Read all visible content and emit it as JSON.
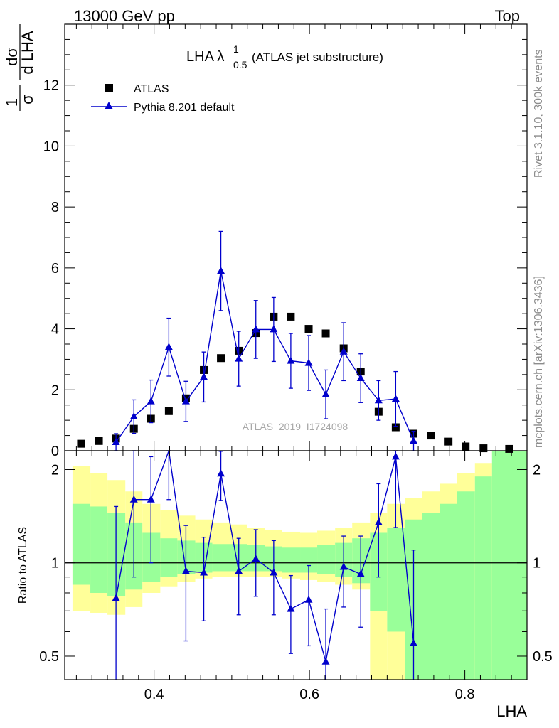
{
  "header": {
    "left_label": "13000 GeV pp",
    "right_label": "Top"
  },
  "side_labels": {
    "top": "Rivet 3.1.10,  300k events",
    "bottom": "mcplots.cern.ch [arXiv:1306.3436]"
  },
  "chart_data": {
    "type": "scatter",
    "title_main": "LHA λ",
    "title_sup": "1",
    "title_sub": "0.5",
    "title_suffix": "(ATLAS jet substructure)",
    "ylabel_fraction": "1/σ",
    "ylabel_derivative": "dσ/d LHA",
    "ylabel_num_main": "1",
    "ylabel_den_main": "σ",
    "ylabel_num_deriv": "dσ",
    "ylabel_den_deriv": "d LHA",
    "xlabel": "LHA",
    "watermark": "ATLAS_2019_I1724098",
    "xlim": [
      0.285,
      0.88
    ],
    "main_ylim": [
      0,
      14
    ],
    "main_yticks": [
      "0",
      "2",
      "4",
      "6",
      "8",
      "10",
      "12"
    ],
    "main_yticks_values": [
      0,
      2,
      4,
      6,
      8,
      10,
      12
    ],
    "ratio_ylabel": "Ratio to ATLAS",
    "ratio_ylim": [
      0.42,
      2.3
    ],
    "ratio_yticks": [
      "0.5",
      "1",
      "2"
    ],
    "ratio_yticks_values": [
      0.5,
      1,
      2
    ],
    "xticks": [
      "0.4",
      "0.6",
      "0.8"
    ],
    "xticks_values": [
      0.4,
      0.6,
      0.8
    ],
    "colors": {
      "data": "#000000",
      "mc": "#0000cc",
      "band_inner": "#99ff99",
      "band_outer": "#ffff99"
    },
    "series": [
      {
        "name": "ATLAS",
        "marker": "square",
        "x": [
          0.306,
          0.329,
          0.351,
          0.374,
          0.396,
          0.419,
          0.441,
          0.464,
          0.486,
          0.509,
          0.531,
          0.554,
          0.576,
          0.599,
          0.621,
          0.644,
          0.666,
          0.689,
          0.711,
          0.734,
          0.756,
          0.779,
          0.801,
          0.824,
          0.857
        ],
        "values": [
          0.23,
          0.32,
          0.4,
          0.72,
          1.05,
          1.3,
          1.72,
          2.65,
          3.04,
          3.28,
          3.86,
          4.4,
          4.4,
          4.0,
          3.85,
          3.36,
          2.6,
          1.28,
          0.77,
          0.56,
          0.5,
          0.3,
          0.14,
          0.08,
          0.06
        ]
      },
      {
        "name": "Pythia 8.201 default",
        "marker": "triangle",
        "x": [
          0.351,
          0.374,
          0.396,
          0.419,
          0.441,
          0.464,
          0.486,
          0.509,
          0.531,
          0.554,
          0.576,
          0.599,
          0.621,
          0.644,
          0.666,
          0.689,
          0.711,
          0.734
        ],
        "values": [
          0.28,
          1.12,
          1.62,
          3.4,
          1.62,
          2.42,
          5.9,
          3.02,
          3.98,
          3.98,
          2.95,
          2.88,
          1.85,
          3.25,
          2.38,
          1.65,
          1.7,
          0.32
        ],
        "errors": [
          0.28,
          0.55,
          0.7,
          0.95,
          0.66,
          0.82,
          1.3,
          0.9,
          0.95,
          1.05,
          0.9,
          0.9,
          0.8,
          0.95,
          0.8,
          0.65,
          0.9,
          0.32
        ]
      }
    ],
    "ratio": {
      "values": [
        0.77,
        1.6,
        1.6,
        2.5,
        0.94,
        0.93,
        1.94,
        0.94,
        1.03,
        0.93,
        0.71,
        0.76,
        0.48,
        0.97,
        0.92,
        1.35,
        2.2,
        0.55
      ],
      "errors": [
        0.75,
        0.7,
        0.6,
        0.9,
        0.38,
        0.28,
        0.35,
        0.26,
        0.25,
        0.25,
        0.2,
        0.22,
        0.23,
        0.25,
        0.3,
        0.45,
        0.9,
        0.55
      ]
    },
    "bands": {
      "edges": [
        0.295,
        0.318,
        0.34,
        0.363,
        0.385,
        0.408,
        0.43,
        0.453,
        0.475,
        0.498,
        0.52,
        0.543,
        0.565,
        0.588,
        0.61,
        0.633,
        0.655,
        0.678,
        0.7,
        0.723,
        0.745,
        0.768,
        0.79,
        0.813,
        0.835,
        0.88
      ],
      "outer_low": [
        0.7,
        0.69,
        0.68,
        0.72,
        0.8,
        0.84,
        0.87,
        0.89,
        0.9,
        0.9,
        0.9,
        0.9,
        0.89,
        0.88,
        0.87,
        0.85,
        0.82,
        0.4,
        0.4,
        0.4,
        0.4,
        0.4,
        0.4,
        0.4,
        0.4
      ],
      "outer_high": [
        2.05,
        1.95,
        1.85,
        1.7,
        1.55,
        1.48,
        1.42,
        1.38,
        1.35,
        1.33,
        1.3,
        1.28,
        1.26,
        1.25,
        1.27,
        1.3,
        1.35,
        1.45,
        1.55,
        1.62,
        1.7,
        1.8,
        1.95,
        2.1,
        2.3
      ],
      "inner_low": [
        0.85,
        0.8,
        0.78,
        0.82,
        0.87,
        0.9,
        0.92,
        0.93,
        0.94,
        0.94,
        0.94,
        0.94,
        0.93,
        0.93,
        0.92,
        0.9,
        0.86,
        0.7,
        0.6,
        0.4,
        0.4,
        0.4,
        0.4,
        0.4,
        0.4
      ],
      "inner_high": [
        1.55,
        1.52,
        1.45,
        1.35,
        1.25,
        1.2,
        1.18,
        1.16,
        1.15,
        1.15,
        1.14,
        1.13,
        1.12,
        1.12,
        1.14,
        1.16,
        1.2,
        1.25,
        1.3,
        1.38,
        1.45,
        1.55,
        1.7,
        1.9,
        2.3
      ]
    }
  }
}
